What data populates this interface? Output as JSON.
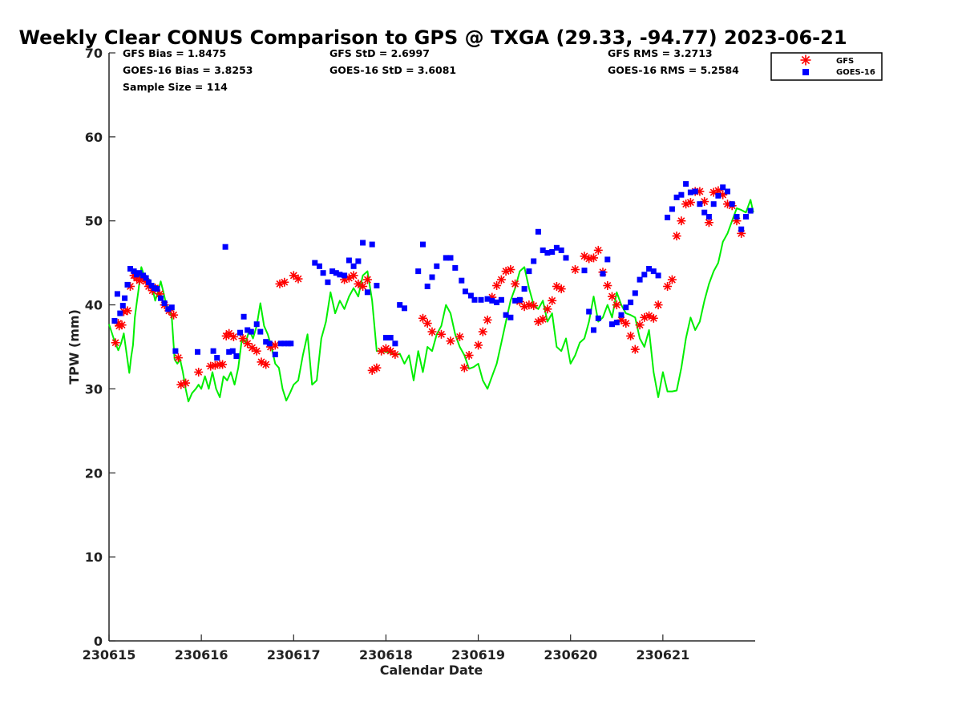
{
  "chart_data": {
    "type": "scatter",
    "title": "Weekly Clear CONUS Comparison to GPS @ TXGA (29.33, -94.77) 2023-06-21",
    "xlabel": "Calendar Date",
    "ylabel": "TPW (mm)",
    "xlim": [
      0,
      7
    ],
    "ylim": [
      0,
      70
    ],
    "x_ticks": [
      0,
      1,
      2,
      3,
      4,
      5,
      6
    ],
    "x_tick_labels": [
      "230615",
      "230616",
      "230617",
      "230618",
      "230619",
      "230620",
      "230621"
    ],
    "y_ticks": [
      0,
      10,
      20,
      30,
      40,
      50,
      60,
      70
    ],
    "y_tick_labels": [
      "0",
      "10",
      "20",
      "30",
      "40",
      "50",
      "60",
      "70"
    ],
    "stats": {
      "gfs_bias": "GFS Bias = 1.8475",
      "goes_bias": "GOES-16 Bias = 3.8253",
      "sample_size": "Sample Size = 114",
      "gfs_std": "GFS StD = 2.6997",
      "goes_std": "GOES-16 StD = 3.6081",
      "gfs_rms": "GFS RMS = 3.2713",
      "goes_rms": "GOES-16 RMS = 5.2584"
    },
    "legend": {
      "position": "top-right",
      "entries": [
        {
          "label": "GFS",
          "marker": "asterisk",
          "color": "#ff0000"
        },
        {
          "label": "GOES-16",
          "marker": "square",
          "color": "#0000ff"
        }
      ]
    },
    "series": [
      {
        "name": "GPS",
        "type": "line",
        "color": "#00ee00",
        "x": [
          0,
          0.05,
          0.1,
          0.13,
          0.16,
          0.19,
          0.22,
          0.24,
          0.26,
          0.28,
          0.3,
          0.32,
          0.35,
          0.38,
          0.41,
          0.44,
          0.47,
          0.5,
          0.53,
          0.56,
          0.59,
          0.62,
          0.65,
          0.68,
          0.71,
          0.74,
          0.77,
          0.8,
          0.83,
          0.86,
          0.9,
          0.94,
          0.97,
          1.0,
          1.04,
          1.08,
          1.12,
          1.16,
          1.2,
          1.24,
          1.28,
          1.32,
          1.36,
          1.4,
          1.44,
          1.48,
          1.52,
          1.56,
          1.6,
          1.64,
          1.68,
          1.72,
          1.76,
          1.8,
          1.84,
          1.88,
          1.92,
          1.96,
          2.0,
          2.05,
          2.1,
          2.15,
          2.2,
          2.25,
          2.3,
          2.35,
          2.4,
          2.45,
          2.5,
          2.55,
          2.6,
          2.65,
          2.7,
          2.75,
          2.8,
          2.85,
          2.9,
          2.95,
          3.0,
          3.05,
          3.1,
          3.15,
          3.2,
          3.25,
          3.3,
          3.35,
          3.4,
          3.45,
          3.5,
          3.55,
          3.6,
          3.65,
          3.7,
          3.75,
          3.8,
          3.85,
          3.9,
          3.95,
          4.0,
          4.05,
          4.1,
          4.15,
          4.2,
          4.25,
          4.3,
          4.35,
          4.4,
          4.45,
          4.5,
          4.55,
          4.6,
          4.65,
          4.7,
          4.75,
          4.8,
          4.85,
          4.9,
          4.95,
          5.0,
          5.05,
          5.1,
          5.15,
          5.2,
          5.25,
          5.3,
          5.35,
          5.4,
          5.45,
          5.5,
          5.55,
          5.6,
          5.65,
          5.7,
          5.75,
          5.8,
          5.85,
          5.9,
          5.95,
          6.0,
          6.05,
          6.1,
          6.15,
          6.2,
          6.25,
          6.3,
          6.35,
          6.4,
          6.45,
          6.5,
          6.55,
          6.6,
          6.65,
          6.7,
          6.75,
          6.8,
          6.85,
          6.9,
          6.95,
          6.98
        ],
        "y": [
          37.7,
          36.0,
          34.6,
          35.4,
          36.6,
          34.2,
          31.9,
          33.8,
          35.2,
          38.5,
          40.2,
          41.8,
          44.5,
          43.5,
          42.5,
          43.0,
          42.0,
          40.5,
          41.5,
          42.8,
          41.5,
          40.0,
          39.5,
          38.5,
          33.5,
          33.0,
          33.5,
          32.0,
          30.0,
          28.5,
          29.5,
          30.0,
          30.5,
          30.0,
          31.5,
          30.0,
          32.0,
          30.0,
          29.0,
          31.5,
          31.0,
          32.0,
          30.5,
          32.5,
          36.0,
          35.5,
          37.0,
          36.0,
          37.5,
          40.2,
          37.5,
          36.5,
          35.0,
          33.0,
          32.5,
          30.0,
          28.6,
          29.5,
          30.5,
          31.0,
          34.0,
          36.5,
          30.5,
          31.0,
          36.0,
          38.0,
          41.5,
          39.0,
          40.5,
          39.5,
          41.0,
          42.0,
          41.0,
          43.5,
          44.0,
          40.5,
          34.5,
          34.5,
          34.4,
          34.3,
          34.0,
          34.2,
          33.0,
          34.0,
          31.0,
          34.5,
          32.0,
          35.0,
          34.5,
          36.5,
          37.5,
          40.0,
          39.0,
          36.5,
          35.0,
          34.0,
          32.4,
          32.6,
          33.0,
          31.0,
          30.0,
          31.5,
          33.0,
          35.5,
          38.0,
          40.5,
          42.0,
          44.0,
          44.5,
          42.0,
          40.0,
          39.5,
          40.5,
          38.0,
          39.0,
          35.0,
          34.5,
          36.0,
          33.0,
          34.0,
          35.5,
          36.0,
          38.0,
          41.0,
          38.0,
          38.5,
          40.0,
          38.5,
          41.5,
          40.0,
          39.0,
          38.8,
          38.5,
          36.0,
          35.0,
          37.0,
          32.0,
          29.0,
          32.0,
          29.7,
          29.7,
          29.8,
          32.5,
          36.0,
          38.5,
          37.0,
          38.0,
          40.5,
          42.5,
          44.0,
          45.0,
          47.5,
          48.5,
          50.0,
          51.5,
          51.3,
          51.0,
          52.5,
          51.0
        ]
      },
      {
        "name": "GFS",
        "type": "scatter",
        "marker": "asterisk",
        "color": "#ff0000",
        "x": [
          0.07,
          0.1,
          0.11,
          0.14,
          0.16,
          0.2,
          0.23,
          0.27,
          0.3,
          0.33,
          0.37,
          0.4,
          0.43,
          0.47,
          0.5,
          0.55,
          0.6,
          0.65,
          0.7,
          0.75,
          0.78,
          0.83,
          0.97,
          1.1,
          1.15,
          1.2,
          1.23,
          1.27,
          1.3,
          1.35,
          1.45,
          1.5,
          1.55,
          1.6,
          1.65,
          1.7,
          1.75,
          1.8,
          1.85,
          1.9,
          2.0,
          2.05,
          2.55,
          2.6,
          2.65,
          2.7,
          2.75,
          2.8,
          2.85,
          2.9,
          2.95,
          3.0,
          3.05,
          3.1,
          3.4,
          3.45,
          3.5,
          3.6,
          3.7,
          3.8,
          3.85,
          3.9,
          4.0,
          4.05,
          4.1,
          4.15,
          4.2,
          4.25,
          4.3,
          4.35,
          4.4,
          4.45,
          4.5,
          4.55,
          4.6,
          4.65,
          4.7,
          4.75,
          4.8,
          4.85,
          4.9,
          5.05,
          5.15,
          5.2,
          5.25,
          5.3,
          5.35,
          5.4,
          5.45,
          5.5,
          5.55,
          5.6,
          5.65,
          5.7,
          5.75,
          5.8,
          5.85,
          5.9,
          5.95,
          6.05,
          6.1,
          6.15,
          6.2,
          6.25,
          6.3,
          6.35,
          6.4,
          6.45,
          6.5,
          6.55,
          6.6,
          6.65,
          6.7,
          6.75,
          6.8,
          6.85
        ],
        "y": [
          35.5,
          37.8,
          37.5,
          37.6,
          39.2,
          39.3,
          42.2,
          43.5,
          43.2,
          42.9,
          43.2,
          42.8,
          42.2,
          41.7,
          42.0,
          41.3,
          40.0,
          39.3,
          38.8,
          33.7,
          30.5,
          30.7,
          32.0,
          32.7,
          32.8,
          32.9,
          32.9,
          36.3,
          36.6,
          36.2,
          36.0,
          35.4,
          34.9,
          34.5,
          33.2,
          32.9,
          35.0,
          35.2,
          42.5,
          42.7,
          43.5,
          43.1,
          43.0,
          43.2,
          43.5,
          42.5,
          42.2,
          43.0,
          32.2,
          32.5,
          34.5,
          34.8,
          34.5,
          34.1,
          38.4,
          37.8,
          36.8,
          36.5,
          35.7,
          36.2,
          32.5,
          34.0,
          35.2,
          36.8,
          38.2,
          40.9,
          42.3,
          43.0,
          44.0,
          44.2,
          42.5,
          40.4,
          39.8,
          40.0,
          39.9,
          38.0,
          38.3,
          39.5,
          40.5,
          42.2,
          41.9,
          44.2,
          45.8,
          45.5,
          45.6,
          46.5,
          43.9,
          42.3,
          41.0,
          40.0,
          38.2,
          37.8,
          36.3,
          34.7,
          37.6,
          38.5,
          38.7,
          38.4,
          40.0,
          42.2,
          43.0,
          48.2,
          50.0,
          52.0,
          52.2,
          53.5,
          53.5,
          52.3,
          49.8,
          53.4,
          53.6,
          53.1,
          52.0,
          51.8,
          50.0,
          48.5
        ],
        "_note": "GFS point values estimated"
      },
      {
        "name": "GOES-16",
        "type": "scatter",
        "marker": "square",
        "color": "#0000ff",
        "x": [
          0.06,
          0.09,
          0.12,
          0.15,
          0.17,
          0.2,
          0.23,
          0.27,
          0.3,
          0.33,
          0.37,
          0.4,
          0.43,
          0.46,
          0.49,
          0.52,
          0.56,
          0.6,
          0.64,
          0.68,
          0.72,
          0.96,
          1.13,
          1.17,
          1.26,
          1.3,
          1.34,
          1.38,
          1.42,
          1.46,
          1.5,
          1.54,
          1.6,
          1.64,
          1.7,
          1.74,
          1.8,
          1.86,
          1.9,
          1.94,
          1.97,
          2.23,
          2.28,
          2.32,
          2.37,
          2.42,
          2.46,
          2.5,
          2.55,
          2.6,
          2.65,
          2.7,
          2.75,
          2.8,
          2.85,
          2.9,
          3.0,
          3.05,
          3.1,
          3.15,
          3.2,
          3.35,
          3.4,
          3.45,
          3.5,
          3.55,
          3.65,
          3.7,
          3.75,
          3.82,
          3.86,
          3.92,
          3.96,
          4.03,
          4.1,
          4.15,
          4.2,
          4.25,
          4.3,
          4.35,
          4.4,
          4.45,
          4.5,
          4.55,
          4.6,
          4.65,
          4.7,
          4.75,
          4.8,
          4.85,
          4.9,
          4.95,
          5.15,
          5.2,
          5.25,
          5.3,
          5.35,
          5.4,
          5.45,
          5.5,
          5.55,
          5.6,
          5.65,
          5.7,
          5.75,
          5.8,
          5.85,
          5.9,
          5.95,
          6.05,
          6.1,
          6.15,
          6.2,
          6.25,
          6.3,
          6.35,
          6.4,
          6.45,
          6.5,
          6.55,
          6.6,
          6.65,
          6.7,
          6.75,
          6.8,
          6.85,
          6.9,
          6.95
        ],
        "y": [
          38.1,
          41.3,
          39.0,
          39.9,
          40.8,
          42.4,
          44.3,
          44.0,
          43.6,
          43.8,
          43.5,
          43.2,
          42.7,
          42.3,
          42.0,
          41.9,
          40.8,
          40.2,
          39.5,
          39.7,
          34.5,
          34.4,
          34.5,
          33.7,
          46.9,
          34.4,
          34.5,
          33.9,
          36.7,
          38.6,
          37.0,
          36.8,
          37.7,
          36.8,
          35.6,
          35.4,
          34.1,
          35.4,
          35.4,
          35.4,
          35.4,
          45.0,
          44.6,
          43.8,
          42.7,
          44.0,
          43.8,
          43.6,
          43.5,
          45.3,
          44.6,
          45.2,
          47.4,
          41.5,
          47.2,
          42.3,
          36.1,
          36.1,
          35.4,
          40.0,
          39.6,
          44.0,
          47.2,
          42.2,
          43.3,
          44.6,
          45.6,
          45.6,
          44.4,
          42.9,
          41.6,
          41.1,
          40.6,
          40.6,
          40.7,
          40.5,
          40.3,
          40.6,
          38.8,
          38.5,
          40.5,
          40.6,
          41.9,
          44.0,
          45.2,
          48.7,
          46.5,
          46.2,
          46.3,
          46.8,
          46.5,
          45.6,
          44.1,
          39.2,
          37.0,
          38.4,
          43.7,
          45.4,
          37.7,
          37.9,
          38.8,
          39.7,
          40.3,
          41.4,
          43.0,
          43.6,
          44.3,
          44.0,
          43.5,
          50.4,
          51.4,
          52.8,
          53.1,
          54.4,
          53.4,
          53.5,
          52.0,
          51.0,
          50.5,
          52.0,
          53.0,
          54.0,
          53.5,
          52.0,
          50.5,
          49.0,
          50.5,
          51.2
        ],
        "_note": "GOES-16 point values estimated"
      }
    ]
  }
}
